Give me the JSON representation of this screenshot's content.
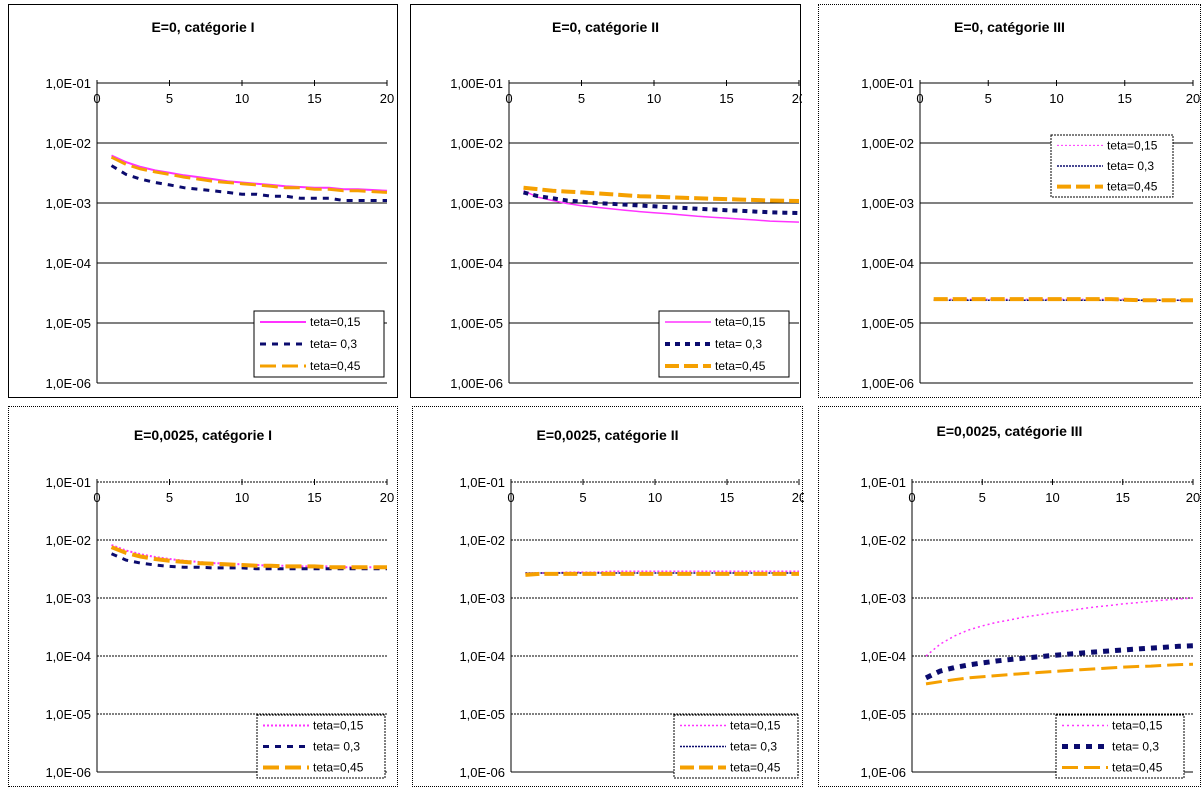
{
  "colors": {
    "s1": "#ff33ff",
    "s2": "#0b0b6e",
    "s3": "#f5a000"
  },
  "chart_data": [
    {
      "type": "line",
      "title": "E=0, catégorie I",
      "yscale": "log",
      "ylim": [
        1e-06,
        0.1
      ],
      "xlim": [
        0,
        20
      ],
      "yticks": [
        "1,0E-06",
        "1,0E-05",
        "1,0E-04",
        "1,0E-03",
        "1,0E-02",
        "1,0E-01"
      ],
      "xticks": [
        "0",
        "5",
        "10",
        "15",
        "20"
      ],
      "legend": "bottom-right",
      "x": [
        1,
        2,
        3,
        4,
        5,
        6,
        7,
        8,
        9,
        10,
        11,
        12,
        13,
        14,
        15,
        16,
        17,
        18,
        19,
        20
      ],
      "series": [
        {
          "name": "teta=0,15",
          "values": [
            0.0062,
            0.0048,
            0.004,
            0.0035,
            0.0032,
            0.0029,
            0.0027,
            0.0025,
            0.0023,
            0.0022,
            0.0021,
            0.002,
            0.0019,
            0.00185,
            0.0018,
            0.0018,
            0.0017,
            0.0017,
            0.00165,
            0.0016
          ]
        },
        {
          "name": "teta= 0,3",
          "values": [
            0.0042,
            0.003,
            0.0025,
            0.0022,
            0.002,
            0.0018,
            0.0017,
            0.0016,
            0.0015,
            0.0014,
            0.0014,
            0.0013,
            0.0013,
            0.0012,
            0.0012,
            0.0012,
            0.0011,
            0.0011,
            0.0011,
            0.0011
          ]
        },
        {
          "name": "teta=0,45",
          "values": [
            0.0058,
            0.0044,
            0.0037,
            0.0033,
            0.003,
            0.0027,
            0.0025,
            0.0023,
            0.0022,
            0.0021,
            0.002,
            0.0019,
            0.0018,
            0.0018,
            0.0017,
            0.0017,
            0.0016,
            0.0016,
            0.00155,
            0.0015
          ]
        }
      ]
    },
    {
      "type": "line",
      "title": "E=0, catégorie II",
      "yscale": "log",
      "ylim": [
        1e-06,
        0.1
      ],
      "xlim": [
        0,
        20
      ],
      "yticks": [
        "1,00E-06",
        "1,00E-05",
        "1,00E-04",
        "1,00E-03",
        "1,00E-02",
        "1,00E-01"
      ],
      "xticks": [
        "0",
        "5",
        "10",
        "15",
        "20"
      ],
      "legend": "bottom-right",
      "x": [
        1,
        2,
        3,
        4,
        5,
        6,
        7,
        8,
        9,
        10,
        11,
        12,
        13,
        14,
        15,
        16,
        17,
        18,
        19,
        20
      ],
      "series": [
        {
          "name": "teta=0,15",
          "values": [
            0.0016,
            0.00125,
            0.0011,
            0.00098,
            0.0009,
            0.00085,
            0.0008,
            0.00076,
            0.00072,
            0.00069,
            0.00066,
            0.00063,
            0.0006,
            0.00058,
            0.00056,
            0.00054,
            0.00052,
            0.0005,
            0.00049,
            0.00048
          ]
        },
        {
          "name": "teta= 0,3",
          "values": [
            0.0015,
            0.0013,
            0.0012,
            0.0011,
            0.00105,
            0.001,
            0.00097,
            0.00094,
            0.00091,
            0.00088,
            0.00085,
            0.00083,
            0.0008,
            0.00078,
            0.00076,
            0.00074,
            0.00072,
            0.0007,
            0.00069,
            0.00068
          ]
        },
        {
          "name": "teta=0,45",
          "values": [
            0.0018,
            0.0017,
            0.0016,
            0.00155,
            0.0015,
            0.00145,
            0.0014,
            0.00135,
            0.0013,
            0.00128,
            0.00125,
            0.00122,
            0.0012,
            0.00118,
            0.00116,
            0.00114,
            0.00112,
            0.0011,
            0.00109,
            0.00108
          ]
        }
      ]
    },
    {
      "type": "line",
      "title": "E=0, catégorie III",
      "yscale": "log",
      "ylim": [
        1e-06,
        0.1
      ],
      "xlim": [
        0,
        20
      ],
      "yticks": [
        "1,00E-06",
        "1,00E-05",
        "1,00E-04",
        "1,00E-03",
        "1,00E-02",
        "1,00E-01"
      ],
      "xticks": [
        "0",
        "5",
        "10",
        "15",
        "20"
      ],
      "legend": "top-right",
      "x": [
        1,
        2,
        3,
        4,
        5,
        6,
        7,
        8,
        9,
        10,
        11,
        12,
        13,
        14,
        15,
        16,
        17,
        18,
        19,
        20
      ],
      "series": [
        {
          "name": "teta=0,15",
          "values": [
            2.5e-05,
            2.5e-05,
            2.5e-05,
            2.5e-05,
            2.5e-05,
            2.5e-05,
            2.5e-05,
            2.5e-05,
            2.5e-05,
            2.5e-05,
            2.5e-05,
            2.5e-05,
            2.5e-05,
            2.5e-05,
            2.5e-05,
            2.45e-05,
            2.45e-05,
            2.45e-05,
            2.4e-05,
            2.4e-05
          ]
        },
        {
          "name": "teta= 0,3",
          "values": [
            2.4e-05,
            2.4e-05,
            2.4e-05,
            2.4e-05,
            2.4e-05,
            2.4e-05,
            2.4e-05,
            2.4e-05,
            2.4e-05,
            2.4e-05,
            2.4e-05,
            2.4e-05,
            2.4e-05,
            2.4e-05,
            2.4e-05,
            2.4e-05,
            2.4e-05,
            2.4e-05,
            2.4e-05,
            2.4e-05
          ]
        },
        {
          "name": "teta=0,45",
          "values": [
            2.5e-05,
            2.5e-05,
            2.5e-05,
            2.5e-05,
            2.5e-05,
            2.5e-05,
            2.5e-05,
            2.5e-05,
            2.5e-05,
            2.5e-05,
            2.5e-05,
            2.5e-05,
            2.5e-05,
            2.5e-05,
            2.45e-05,
            2.4e-05,
            2.4e-05,
            2.4e-05,
            2.4e-05,
            2.4e-05
          ]
        }
      ]
    },
    {
      "type": "line",
      "title": "E=0,0025, catégorie I",
      "yscale": "log",
      "ylim": [
        1e-06,
        0.1
      ],
      "xlim": [
        0,
        20
      ],
      "yticks": [
        "1,0E-06",
        "1,0E-05",
        "1,0E-04",
        "1,0E-03",
        "1,0E-02",
        "1,0E-01"
      ],
      "xticks": [
        "0",
        "5",
        "10",
        "15",
        "20"
      ],
      "legend": "bottom-right",
      "x": [
        1,
        2,
        3,
        4,
        5,
        6,
        7,
        8,
        9,
        10,
        11,
        12,
        13,
        14,
        15,
        16,
        17,
        18,
        19,
        20
      ],
      "series": [
        {
          "name": "teta=0,15",
          "values": [
            0.0082,
            0.0066,
            0.0057,
            0.0051,
            0.0047,
            0.0044,
            0.0042,
            0.004,
            0.0039,
            0.0038,
            0.0037,
            0.0036,
            0.0036,
            0.0035,
            0.0035,
            0.0035,
            0.0034,
            0.0034,
            0.0034,
            0.0034
          ]
        },
        {
          "name": "teta= 0,3",
          "values": [
            0.0058,
            0.0045,
            0.004,
            0.0037,
            0.0035,
            0.0034,
            0.0034,
            0.0033,
            0.0033,
            0.0033,
            0.0032,
            0.0032,
            0.0032,
            0.0032,
            0.0032,
            0.0032,
            0.0032,
            0.0032,
            0.0032,
            0.0032
          ]
        },
        {
          "name": "teta=0,45",
          "values": [
            0.0075,
            0.006,
            0.0052,
            0.0047,
            0.0044,
            0.0042,
            0.004,
            0.0039,
            0.0038,
            0.0037,
            0.0036,
            0.0036,
            0.0035,
            0.0035,
            0.0035,
            0.0034,
            0.0034,
            0.0034,
            0.0034,
            0.0034
          ]
        }
      ]
    },
    {
      "type": "line",
      "title": "E=0,0025, catégorie II",
      "yscale": "log",
      "ylim": [
        1e-06,
        0.1
      ],
      "xlim": [
        0,
        20
      ],
      "yticks": [
        "1,0E-06",
        "1,0E-05",
        "1,0E-04",
        "1,0E-03",
        "1,0E-02",
        "1,0E-01"
      ],
      "xticks": [
        "0",
        "5",
        "10",
        "15",
        "20"
      ],
      "legend": "bottom-right",
      "x": [
        1,
        2,
        3,
        4,
        5,
        6,
        7,
        8,
        9,
        10,
        11,
        12,
        13,
        14,
        15,
        16,
        17,
        18,
        19,
        20
      ],
      "series": [
        {
          "name": "teta=0,15",
          "values": [
            0.0027,
            0.0027,
            0.0027,
            0.0028,
            0.0028,
            0.0028,
            0.0029,
            0.0029,
            0.0029,
            0.0029,
            0.0029,
            0.0029,
            0.0029,
            0.0029,
            0.0029,
            0.0029,
            0.0029,
            0.0029,
            0.0029,
            0.0029
          ]
        },
        {
          "name": "teta= 0,3",
          "values": [
            0.0027,
            0.0027,
            0.0027,
            0.0027,
            0.0027,
            0.0027,
            0.0027,
            0.0027,
            0.0027,
            0.0027,
            0.0027,
            0.0027,
            0.0027,
            0.0027,
            0.0027,
            0.0027,
            0.0027,
            0.0027,
            0.0027,
            0.0027
          ]
        },
        {
          "name": "teta=0,45",
          "values": [
            0.0025,
            0.0026,
            0.0026,
            0.0026,
            0.0026,
            0.0026,
            0.0026,
            0.0026,
            0.0026,
            0.0026,
            0.0026,
            0.0026,
            0.0026,
            0.0026,
            0.0026,
            0.0026,
            0.0026,
            0.0026,
            0.0026,
            0.0026
          ]
        }
      ]
    },
    {
      "type": "line",
      "title": "E=0,0025, catégorie III",
      "yscale": "log",
      "ylim": [
        1e-06,
        0.1
      ],
      "xlim": [
        0,
        20
      ],
      "yticks": [
        "1,0E-06",
        "1,0E-05",
        "1,0E-04",
        "1,0E-03",
        "1,0E-02",
        "1,0E-01"
      ],
      "xticks": [
        "0",
        "5",
        "10",
        "15",
        "20"
      ],
      "legend": "bottom-right",
      "x": [
        1,
        2,
        3,
        4,
        5,
        6,
        7,
        8,
        9,
        10,
        11,
        12,
        13,
        14,
        15,
        16,
        17,
        18,
        19,
        20
      ],
      "series": [
        {
          "name": "teta=0,15",
          "values": [
            0.0001,
            0.00016,
            0.00022,
            0.00028,
            0.00033,
            0.00038,
            0.00042,
            0.00047,
            0.00051,
            0.00056,
            0.0006,
            0.00065,
            0.0007,
            0.00074,
            0.00079,
            0.00083,
            0.00088,
            0.00092,
            0.00096,
            0.001
          ]
        },
        {
          "name": "teta= 0,3",
          "values": [
            4.2e-05,
            5.5e-05,
            6.3e-05,
            7e-05,
            7.6e-05,
            8.2e-05,
            8.7e-05,
            9.2e-05,
            9.7e-05,
            0.000102,
            0.000107,
            0.000112,
            0.000117,
            0.000122,
            0.000127,
            0.000132,
            0.000137,
            0.000142,
            0.000147,
            0.00015
          ]
        },
        {
          "name": "teta=0,45",
          "values": [
            3.3e-05,
            3.6e-05,
            3.9e-05,
            4.2e-05,
            4.4e-05,
            4.6e-05,
            4.8e-05,
            5e-05,
            5.2e-05,
            5.4e-05,
            5.6e-05,
            5.8e-05,
            6e-05,
            6.2e-05,
            6.4e-05,
            6.6e-05,
            6.7e-05,
            6.9e-05,
            7.1e-05,
            7.2e-05
          ]
        }
      ]
    }
  ]
}
